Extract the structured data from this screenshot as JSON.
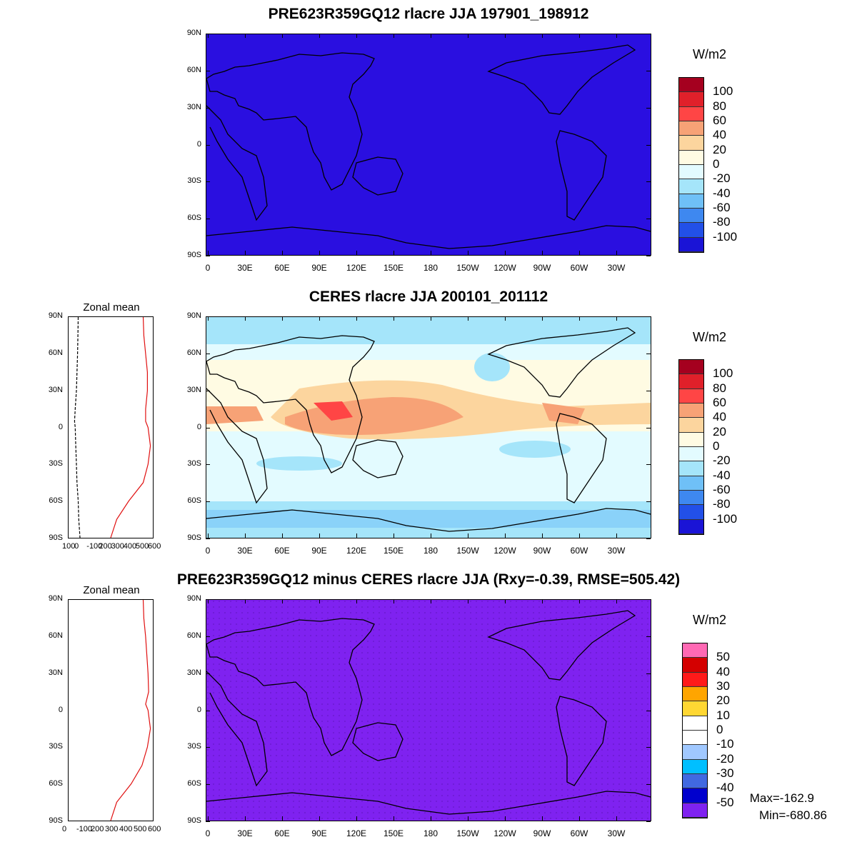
{
  "panels": [
    {
      "title": "PRE623R359GQ12 rlacre JJA 197901_198912",
      "fill": "#2a0fe0",
      "units": "W/m2",
      "colorbar": {
        "labels": [
          "100",
          "80",
          "60",
          "40",
          "20",
          "0",
          "-20",
          "-40",
          "-60",
          "-80",
          "-100"
        ],
        "colors": [
          "#a5001f",
          "#e0202a",
          "#ff4545",
          "#f7a276",
          "#fcd59e",
          "#fffbe3",
          "#e3fbff",
          "#a5e5fa",
          "#6fc0f7",
          "#3e88f0",
          "#2250e8",
          "#1a14d6"
        ]
      }
    },
    {
      "title": "CERES rlacre JJA 200101_201112",
      "units": "W/m2",
      "colorbar": {
        "labels": [
          "100",
          "80",
          "60",
          "40",
          "20",
          "0",
          "-20",
          "-40",
          "-60",
          "-80",
          "-100"
        ],
        "colors": [
          "#a5001f",
          "#e0202a",
          "#ff4545",
          "#f7a276",
          "#fcd59e",
          "#fffbe3",
          "#e3fbff",
          "#a5e5fa",
          "#6fc0f7",
          "#3e88f0",
          "#2250e8",
          "#1a14d6"
        ]
      },
      "zonal_mean": {
        "title": "Zonal mean",
        "x_ticks": [
          "100",
          "0",
          "-100",
          "200",
          "300",
          "400",
          "500",
          "600"
        ]
      }
    },
    {
      "title": "PRE623R359GQ12 minus CERES rlacre JJA (Rxy=-0.39, RMSE=505.42)",
      "fill": "#7f22f0",
      "units": "W/m2",
      "colorbar": {
        "labels": [
          "50",
          "40",
          "30",
          "20",
          "10",
          "0",
          "-10",
          "-20",
          "-30",
          "-40",
          "-50"
        ],
        "colors": [
          "#ff69b4",
          "#d40000",
          "#ff1a1a",
          "#ffa500",
          "#ffd733",
          "#ffffff",
          "#ffffff",
          "#a0c8ff",
          "#00bfff",
          "#4169e1",
          "#0000cd",
          "#7f22f0"
        ]
      },
      "zonal_mean": {
        "title": "Zonal mean",
        "x_ticks": [
          "0",
          "-100",
          "200",
          "300",
          "400",
          "500",
          "600"
        ]
      },
      "stats": {
        "max": "Max=-162.9",
        "min": "Min=-680.86"
      }
    }
  ],
  "lat_labels": [
    "90N",
    "60N",
    "30N",
    "0",
    "30S",
    "60S",
    "90S"
  ],
  "lon_labels": [
    "0",
    "30E",
    "60E",
    "90E",
    "120E",
    "150E",
    "180",
    "150W",
    "120W",
    "90W",
    "60W",
    "30W"
  ],
  "chart_data": {
    "type": "map",
    "variable": "rlacre",
    "season": "JJA",
    "zonal_mean_ceres": {
      "lat": [
        90,
        75,
        60,
        45,
        30,
        15,
        5,
        0,
        -15,
        -30,
        -45,
        -60,
        -75,
        -90
      ],
      "obs_black": [
        -20,
        -22,
        -25,
        -30,
        -35,
        -45,
        -50,
        -45,
        -40,
        -35,
        -30,
        -20,
        -15,
        -5
      ],
      "model_red": [
        520,
        525,
        540,
        555,
        555,
        540,
        540,
        560,
        580,
        560,
        520,
        400,
        300,
        250
      ]
    },
    "zonal_mean_diff": {
      "lat": [
        90,
        75,
        60,
        45,
        30,
        15,
        5,
        0,
        -15,
        -30,
        -45,
        -60,
        -75,
        -90
      ],
      "red": [
        520,
        525,
        540,
        550,
        560,
        565,
        540,
        560,
        580,
        555,
        510,
        420,
        300,
        250
      ]
    }
  }
}
